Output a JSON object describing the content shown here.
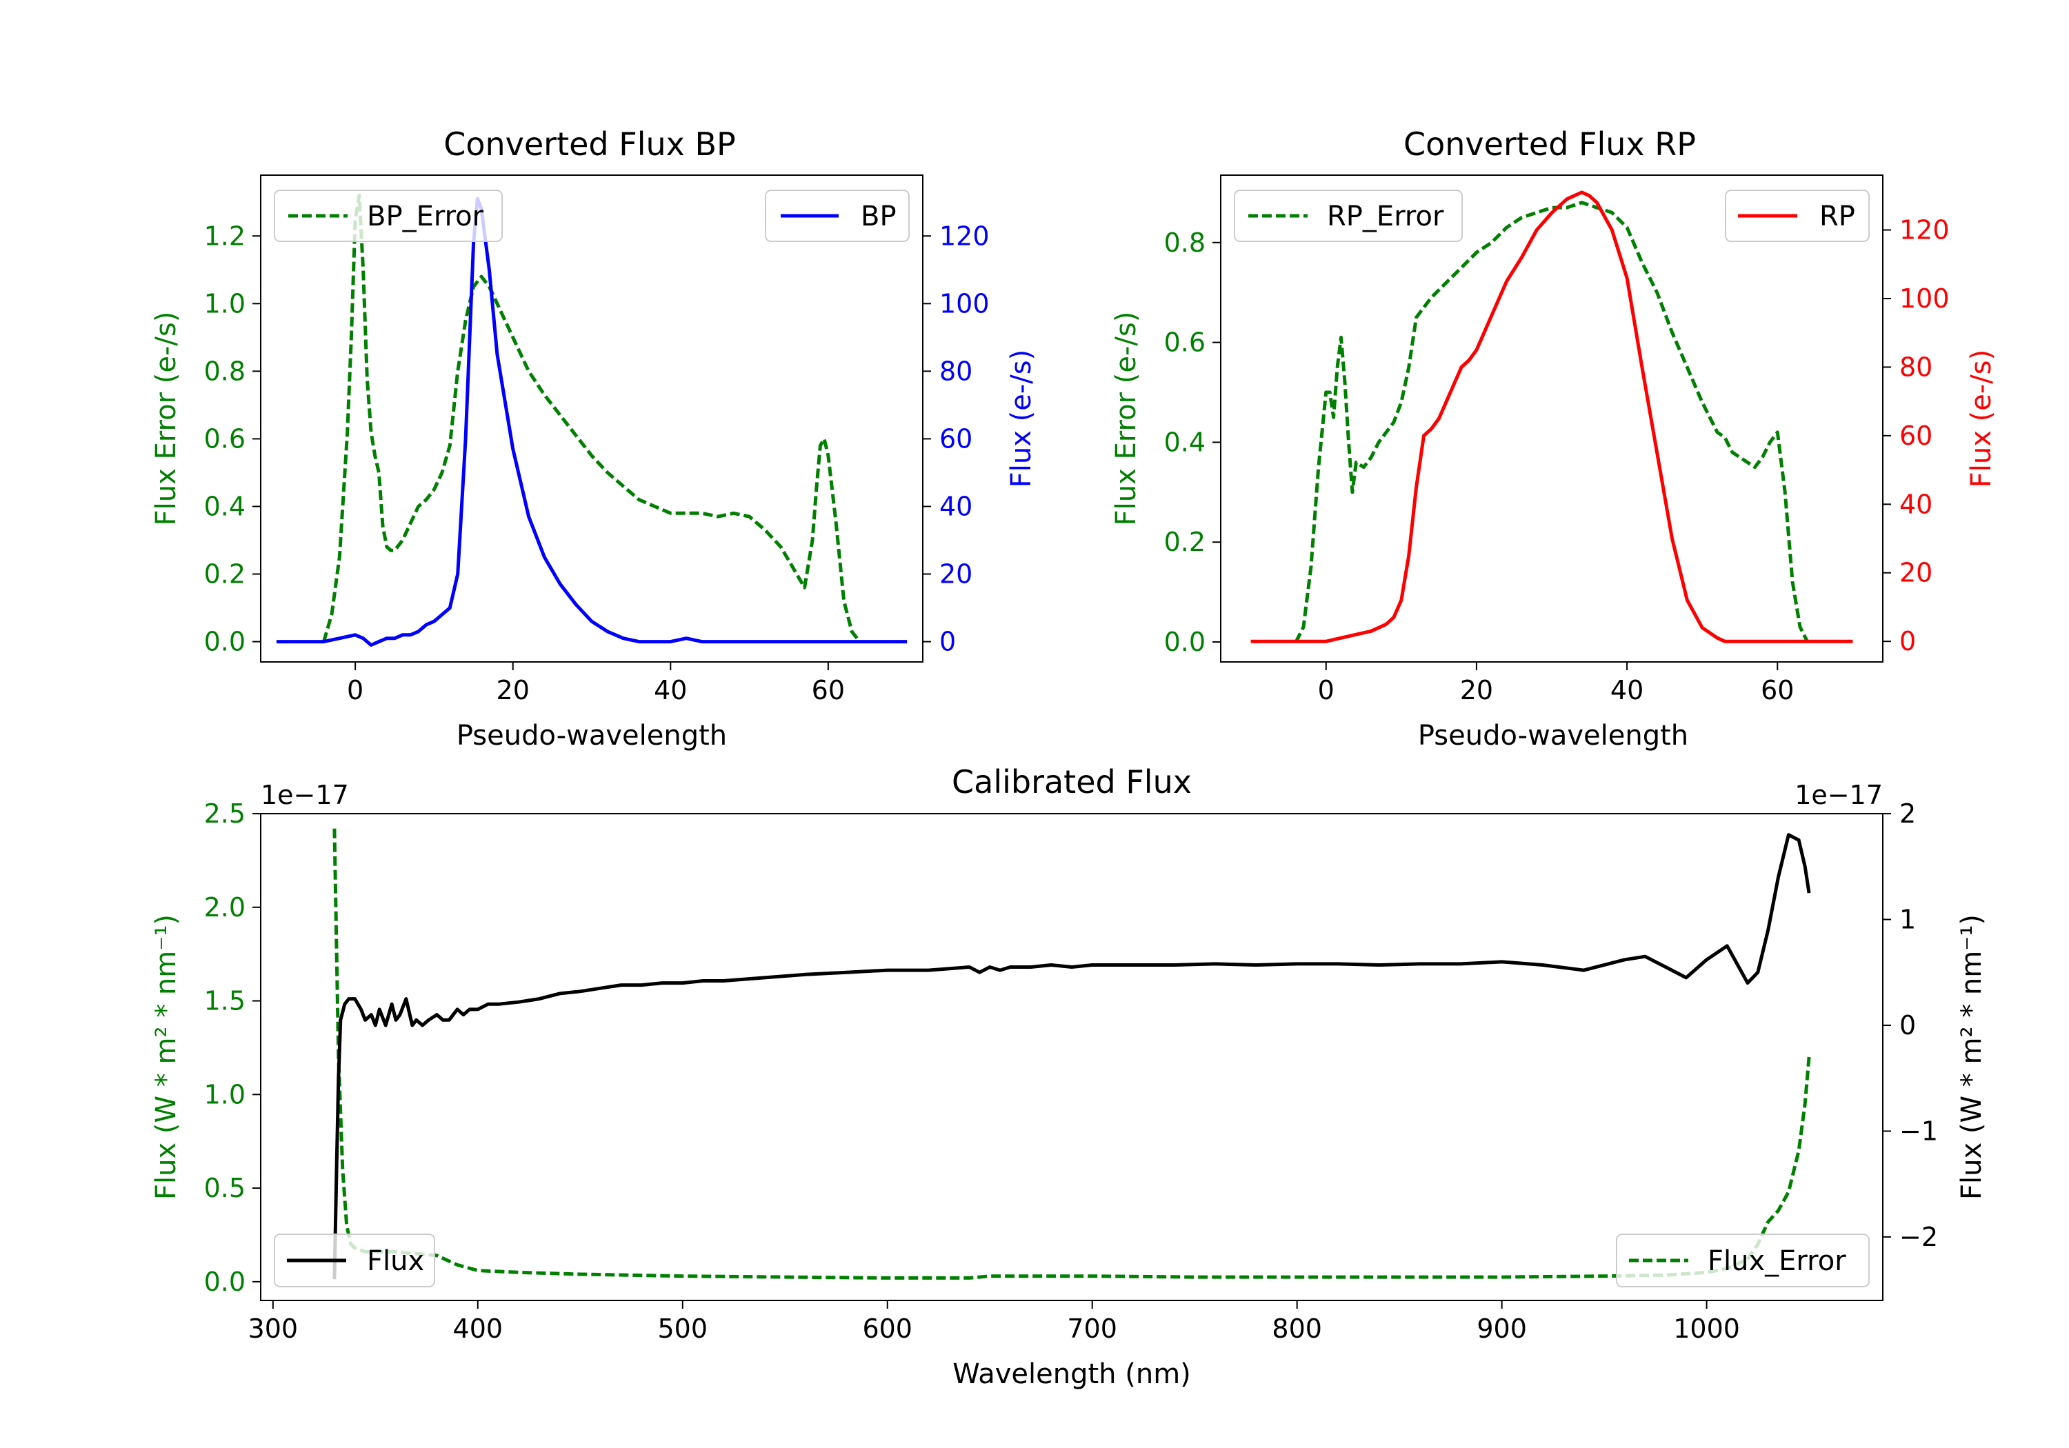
{
  "colors": {
    "green": "#008000",
    "blue": "#0000ff",
    "red": "#ff0000",
    "black": "#000000"
  },
  "chart_data": [
    {
      "type": "line",
      "title": "Converted Flux BP",
      "xlabel": "Pseudo-wavelength",
      "ylabel_left": "Flux Error (e-/s)",
      "ylabel_right": "Flux (e-/s)",
      "xlim": [
        -12,
        72
      ],
      "ylim_left": [
        -0.06,
        1.38
      ],
      "ylim_right": [
        -6,
        138
      ],
      "xticks": [
        "0",
        "20",
        "40",
        "60"
      ],
      "yticks_left": [
        "0.0",
        "0.2",
        "0.4",
        "0.6",
        "0.8",
        "1.0",
        "1.2"
      ],
      "yticks_right": [
        "0",
        "20",
        "40",
        "60",
        "80",
        "100",
        "120"
      ],
      "legend_left": "BP_Error",
      "legend_right": "BP",
      "series": [
        {
          "name": "BP_Error",
          "axis": "left",
          "style": "dashed",
          "color": "#008000",
          "x": [
            -4,
            -3,
            -2,
            -1,
            -0.5,
            0,
            0.5,
            1,
            1.5,
            2,
            2.5,
            3,
            3.5,
            4,
            4.5,
            5,
            6,
            7,
            8,
            9,
            10,
            11,
            12,
            13,
            14,
            15,
            16,
            17,
            18,
            20,
            22,
            24,
            26,
            28,
            30,
            32,
            34,
            36,
            38,
            40,
            42,
            44,
            46,
            48,
            50,
            52,
            54,
            56,
            57,
            58,
            58.5,
            59,
            59.5,
            60,
            61,
            62,
            63,
            64
          ],
          "y": [
            0.0,
            0.08,
            0.25,
            0.62,
            0.9,
            1.25,
            1.32,
            1.1,
            0.78,
            0.62,
            0.55,
            0.5,
            0.34,
            0.28,
            0.27,
            0.27,
            0.3,
            0.35,
            0.4,
            0.42,
            0.45,
            0.5,
            0.58,
            0.8,
            0.95,
            1.05,
            1.08,
            1.05,
            1.0,
            0.9,
            0.8,
            0.73,
            0.67,
            0.61,
            0.55,
            0.5,
            0.46,
            0.42,
            0.4,
            0.38,
            0.38,
            0.38,
            0.37,
            0.38,
            0.37,
            0.33,
            0.28,
            0.2,
            0.16,
            0.3,
            0.45,
            0.58,
            0.6,
            0.55,
            0.35,
            0.12,
            0.03,
            0.0
          ]
        },
        {
          "name": "BP",
          "axis": "right",
          "style": "solid",
          "color": "#0000ff",
          "x": [
            -10,
            -8,
            -6,
            -4,
            -2,
            0,
            1,
            2,
            3,
            4,
            5,
            6,
            7,
            8,
            9,
            10,
            11,
            12,
            13,
            14,
            15,
            15.5,
            16,
            17,
            18,
            20,
            22,
            24,
            26,
            28,
            30,
            32,
            34,
            36,
            38,
            40,
            42,
            44,
            46,
            48,
            50,
            52,
            54,
            56,
            58,
            60,
            62,
            64,
            66,
            68,
            70
          ],
          "y": [
            0,
            0,
            0,
            0,
            1,
            2,
            1,
            -1,
            0,
            1,
            1,
            2,
            2,
            3,
            5,
            6,
            8,
            10,
            20,
            60,
            118,
            131,
            128,
            110,
            85,
            57,
            37,
            25,
            17,
            11,
            6,
            3,
            1,
            0,
            0,
            0,
            1,
            0,
            0,
            0,
            0,
            0,
            0,
            0,
            0,
            0,
            0,
            0,
            0,
            0,
            0
          ]
        }
      ]
    },
    {
      "type": "line",
      "title": "Converted Flux RP",
      "xlabel": "Pseudo-wavelength",
      "ylabel_left": "Flux Error (e-/s)",
      "ylabel_right": "Flux (e-/s)",
      "xlim": [
        -14,
        74
      ],
      "ylim_left": [
        -0.04,
        0.935
      ],
      "ylim_right": [
        -6,
        136
      ],
      "xticks": [
        "0",
        "20",
        "40",
        "60"
      ],
      "yticks_left": [
        "0.0",
        "0.2",
        "0.4",
        "0.6",
        "0.8"
      ],
      "yticks_right": [
        "0",
        "20",
        "40",
        "60",
        "80",
        "100",
        "120"
      ],
      "legend_left": "RP_Error",
      "legend_right": "RP",
      "series": [
        {
          "name": "RP_Error",
          "axis": "left",
          "style": "dashed",
          "color": "#008000",
          "x": [
            -4,
            -3,
            -2,
            -1,
            0,
            0.5,
            1,
            1.5,
            2,
            2.5,
            3,
            3.5,
            4,
            5,
            6,
            7,
            8,
            9,
            10,
            11,
            12,
            13,
            14,
            16,
            18,
            20,
            22,
            24,
            26,
            28,
            30,
            32,
            34,
            36,
            38,
            40,
            42,
            44,
            46,
            48,
            50,
            52,
            53,
            54,
            55,
            56,
            57,
            58,
            59,
            60,
            61,
            62,
            63,
            64
          ],
          "y": [
            0.0,
            0.03,
            0.15,
            0.35,
            0.5,
            0.5,
            0.45,
            0.55,
            0.61,
            0.52,
            0.4,
            0.3,
            0.36,
            0.35,
            0.37,
            0.4,
            0.42,
            0.44,
            0.48,
            0.55,
            0.65,
            0.67,
            0.69,
            0.72,
            0.75,
            0.78,
            0.8,
            0.83,
            0.85,
            0.86,
            0.87,
            0.87,
            0.88,
            0.87,
            0.86,
            0.83,
            0.76,
            0.7,
            0.62,
            0.55,
            0.48,
            0.42,
            0.41,
            0.38,
            0.37,
            0.36,
            0.35,
            0.37,
            0.4,
            0.42,
            0.3,
            0.12,
            0.03,
            0.0
          ]
        },
        {
          "name": "RP",
          "axis": "right",
          "style": "solid",
          "color": "#ff0000",
          "x": [
            -10,
            -6,
            -2,
            0,
            2,
            4,
            6,
            8,
            9,
            10,
            11,
            12,
            13,
            14,
            15,
            16,
            17,
            18,
            19,
            20,
            22,
            24,
            26,
            28,
            30,
            32,
            33,
            34,
            35,
            36,
            38,
            40,
            42,
            44,
            46,
            48,
            50,
            52,
            53,
            54,
            56,
            58,
            60,
            62,
            64,
            66,
            68,
            70
          ],
          "y": [
            0,
            0,
            0,
            0,
            1,
            2,
            3,
            5,
            7,
            12,
            25,
            45,
            60,
            62,
            65,
            70,
            75,
            80,
            82,
            85,
            95,
            105,
            112,
            120,
            125,
            129,
            130,
            131,
            130,
            128,
            120,
            106,
            80,
            55,
            30,
            12,
            4,
            1,
            0,
            0,
            0,
            0,
            0,
            0,
            0,
            0,
            0,
            0
          ]
        }
      ]
    },
    {
      "type": "line",
      "title": "Calibrated Flux",
      "xlabel": "Wavelength (nm)",
      "ylabel_left": "Flux (W * m² * nm⁻¹)",
      "ylabel_right": "Flux (W * m² * nm⁻¹)",
      "offset_left": "1e−17",
      "offset_right": "1e−17",
      "xlim": [
        294,
        1086
      ],
      "ylim_left": [
        -0.1,
        2.5
      ],
      "ylim_right": [
        -2.6,
        2.0
      ],
      "xticks": [
        "300",
        "400",
        "500",
        "600",
        "700",
        "800",
        "900",
        "1000"
      ],
      "yticks_left": [
        "0.0",
        "0.5",
        "1.0",
        "1.5",
        "2.0",
        "2.5"
      ],
      "yticks_right": [
        "−2",
        "−1",
        "0",
        "1",
        "2"
      ],
      "legend_left": "Flux",
      "legend_right": "Flux_Error",
      "series": [
        {
          "name": "Flux",
          "axis": "right",
          "style": "solid",
          "color": "#000000",
          "x": [
            330,
            331,
            332,
            333,
            335,
            337,
            340,
            343,
            345,
            348,
            350,
            352,
            355,
            358,
            360,
            362,
            365,
            368,
            370,
            373,
            376,
            380,
            383,
            386,
            390,
            393,
            396,
            400,
            405,
            410,
            420,
            430,
            440,
            450,
            460,
            470,
            480,
            490,
            500,
            510,
            520,
            540,
            560,
            580,
            600,
            620,
            640,
            645,
            650,
            655,
            660,
            670,
            680,
            690,
            700,
            720,
            740,
            760,
            780,
            800,
            820,
            840,
            860,
            880,
            900,
            920,
            940,
            960,
            970,
            980,
            990,
            1000,
            1010,
            1020,
            1025,
            1030,
            1035,
            1040,
            1045,
            1048,
            1050
          ],
          "y": [
            -2.4,
            -1.4,
            -0.5,
            0.05,
            0.2,
            0.25,
            0.25,
            0.15,
            0.05,
            0.1,
            0.0,
            0.15,
            0.0,
            0.2,
            0.05,
            0.1,
            0.25,
            0.0,
            0.05,
            0.0,
            0.05,
            0.1,
            0.05,
            0.05,
            0.15,
            0.1,
            0.15,
            0.15,
            0.2,
            0.2,
            0.22,
            0.25,
            0.3,
            0.32,
            0.35,
            0.38,
            0.38,
            0.4,
            0.4,
            0.42,
            0.42,
            0.45,
            0.48,
            0.5,
            0.52,
            0.52,
            0.55,
            0.5,
            0.55,
            0.52,
            0.55,
            0.55,
            0.57,
            0.55,
            0.57,
            0.57,
            0.57,
            0.58,
            0.57,
            0.58,
            0.58,
            0.57,
            0.58,
            0.58,
            0.6,
            0.57,
            0.52,
            0.62,
            0.65,
            0.55,
            0.45,
            0.62,
            0.75,
            0.4,
            0.5,
            0.9,
            1.4,
            1.8,
            1.75,
            1.5,
            1.25
          ]
        },
        {
          "name": "Flux_Error",
          "axis": "left",
          "style": "dashed",
          "color": "#008000",
          "x": [
            330,
            331,
            332,
            334,
            336,
            338,
            340,
            345,
            350,
            360,
            370,
            380,
            390,
            400,
            420,
            450,
            500,
            550,
            600,
            640,
            650,
            700,
            750,
            800,
            850,
            900,
            950,
            980,
            1000,
            1010,
            1020,
            1025,
            1030,
            1035,
            1040,
            1045,
            1048,
            1050
          ],
          "y": [
            2.42,
            1.8,
            1.2,
            0.6,
            0.3,
            0.2,
            0.18,
            0.16,
            0.16,
            0.16,
            0.15,
            0.14,
            0.09,
            0.06,
            0.05,
            0.04,
            0.03,
            0.025,
            0.02,
            0.02,
            0.03,
            0.03,
            0.025,
            0.025,
            0.025,
            0.025,
            0.03,
            0.035,
            0.05,
            0.07,
            0.12,
            0.2,
            0.32,
            0.38,
            0.48,
            0.7,
            0.95,
            1.2
          ]
        }
      ]
    }
  ]
}
